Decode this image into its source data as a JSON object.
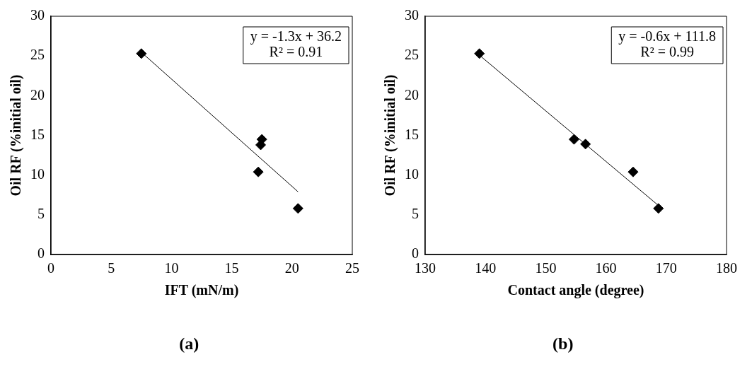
{
  "chart_data": [
    {
      "type": "scatter",
      "title": "(a)",
      "xlabel": "IFT (mN/m)",
      "ylabel": "Oil RF (%initial oil)",
      "xlim": [
        0,
        25
      ],
      "xticks": [
        0,
        5,
        10,
        15,
        20,
        25
      ],
      "ylim": [
        0,
        30
      ],
      "yticks": [
        0,
        5,
        10,
        15,
        20,
        25,
        30
      ],
      "grid": false,
      "legend": false,
      "annotations": [
        "y = -1.3x + 36.2",
        "R² = 0.91"
      ],
      "series": [
        {
          "type": "scatter",
          "marker": "diamond",
          "color": "#000000",
          "x": [
            7.5,
            17.5,
            17.4,
            17.2,
            20.5
          ],
          "values": [
            25.3,
            14.5,
            13.8,
            10.4,
            5.8
          ]
        },
        {
          "type": "line",
          "marker": "none",
          "line_style": "solid",
          "color": "#000000",
          "x": [
            7.7,
            20.5
          ],
          "values": [
            25.2,
            7.9
          ]
        }
      ]
    },
    {
      "type": "scatter",
      "title": "(b)",
      "xlabel": "Contact angle (degree)",
      "ylabel": "Oil RF (%initial oil)",
      "xlim": [
        130,
        180
      ],
      "xticks": [
        130,
        140,
        150,
        160,
        170,
        180
      ],
      "ylim": [
        0,
        30
      ],
      "yticks": [
        0,
        5,
        10,
        15,
        20,
        25,
        30
      ],
      "grid": false,
      "legend": false,
      "annotations": [
        "y = -0.6x + 111.8",
        "R² = 0.99"
      ],
      "series": [
        {
          "type": "scatter",
          "marker": "diamond",
          "color": "#000000",
          "x": [
            139,
            154.7,
            156.6,
            164.5,
            168.7
          ],
          "values": [
            25.3,
            14.5,
            13.9,
            10.4,
            5.8
          ]
        },
        {
          "type": "line",
          "marker": "none",
          "line_style": "solid",
          "color": "#000000",
          "x": [
            139,
            168.5
          ],
          "values": [
            25.1,
            6.3
          ]
        }
      ]
    }
  ]
}
